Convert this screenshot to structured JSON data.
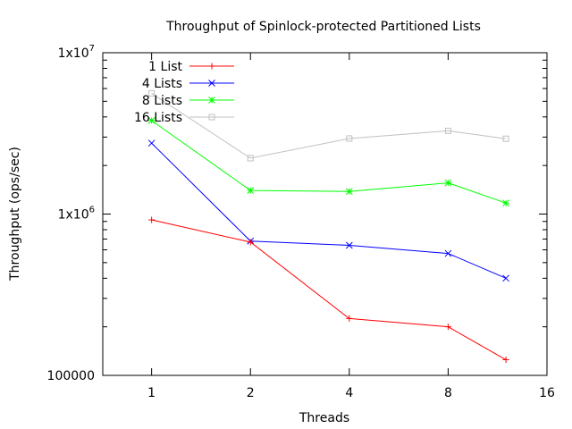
{
  "chart_data": {
    "type": "line",
    "title": "Throughput of Spinlock-protected Partitioned Lists",
    "xlabel": "Threads",
    "ylabel": "Throughput (ops/sec)",
    "x_scale": "log2",
    "y_scale": "log10",
    "xlim": [
      0.71,
      16
    ],
    "ylim": [
      100000,
      10000000
    ],
    "x_ticks": [
      {
        "value": 1,
        "label": "1"
      },
      {
        "value": 2,
        "label": "2"
      },
      {
        "value": 4,
        "label": "4"
      },
      {
        "value": 8,
        "label": "8"
      },
      {
        "value": 16,
        "label": "16"
      }
    ],
    "y_ticks": [
      {
        "value": 100000,
        "label": "100000"
      },
      {
        "value": 1000000,
        "label": "1x10",
        "exp": "6"
      },
      {
        "value": 10000000,
        "label": "1x10",
        "exp": "7"
      }
    ],
    "x": [
      1,
      2,
      4,
      8,
      12
    ],
    "legend_position": "top-left",
    "series": [
      {
        "name": "1 List",
        "color": "#ff0000",
        "marker": "plus",
        "values": [
          920000,
          670000,
          225000,
          200000,
          125000
        ]
      },
      {
        "name": "4 Lists",
        "color": "#0000ff",
        "marker": "cross",
        "values": [
          2750000,
          680000,
          640000,
          570000,
          400000
        ]
      },
      {
        "name": "8 Lists",
        "color": "#00ff00",
        "marker": "star",
        "values": [
          3800000,
          1400000,
          1380000,
          1560000,
          1170000
        ]
      },
      {
        "name": "16 Lists",
        "color": "#c0c0c0",
        "marker": "square",
        "values": [
          5600000,
          2220000,
          2940000,
          3280000,
          2930000
        ]
      }
    ]
  }
}
